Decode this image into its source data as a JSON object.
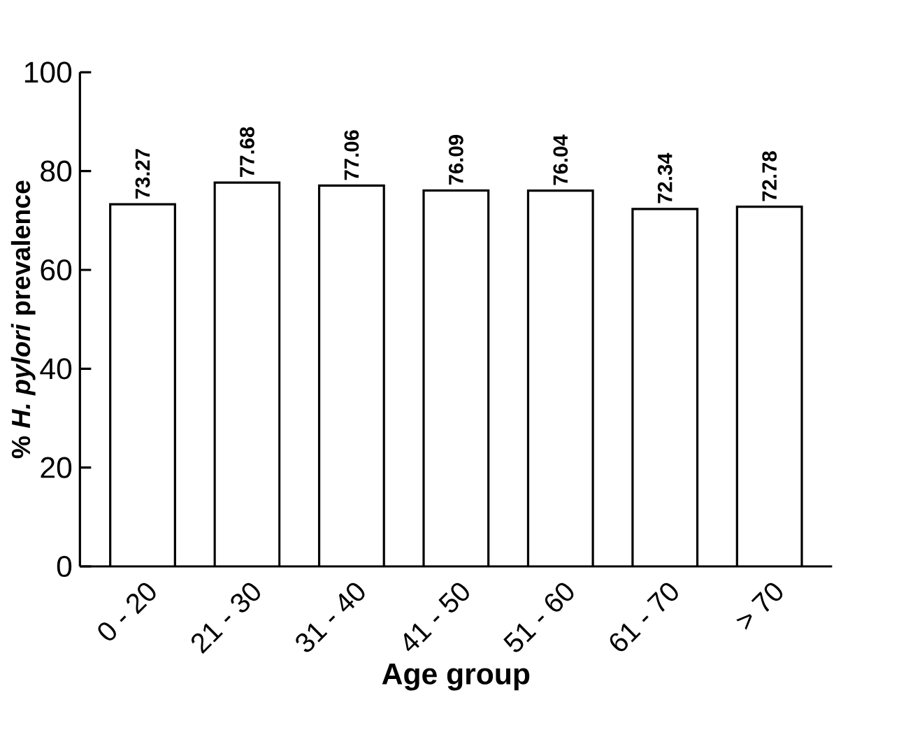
{
  "chart_data": {
    "type": "bar",
    "xlabel": "Age group",
    "ylabel": "% *H. pylori* prevalence",
    "categories": [
      "0 - 20",
      "21 - 30",
      "31 - 40",
      "41 - 50",
      "51 - 60",
      "61 - 70",
      "> 70"
    ],
    "values": [
      73.27,
      77.68,
      77.06,
      76.09,
      76.04,
      72.34,
      72.78
    ],
    "color": "#000000",
    "ylim": [
      0,
      100
    ],
    "yticks": [
      0,
      20,
      40,
      60,
      80,
      100
    ],
    "data_labels": true
  }
}
